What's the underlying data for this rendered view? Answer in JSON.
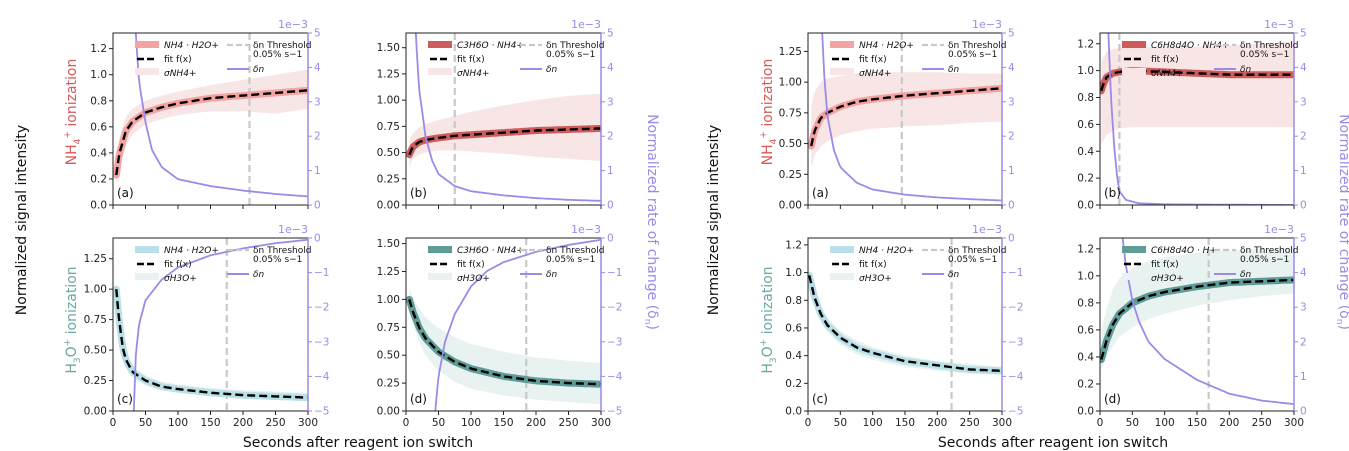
{
  "colors": {
    "nh4_fill": "#f8e6e6",
    "nh4_band_a": "#f4a3a3",
    "nh4_band_b": "#cd5c5c",
    "h3o_fill": "#e8f2f1",
    "h3o_band_a": "#b8e0e6",
    "h3o_band_b": "#5f9c98",
    "fit": "#000000",
    "threshold": "#c8c8c8",
    "delta": "#9b8ae6",
    "row_nh4_label": "#d85a5a",
    "row_h3o_label": "#6aa8a2"
  },
  "labels": {
    "ylabel_left": "Normalized signal intensity",
    "ylabel_right": "Normalized rate of change (δ",
    "ylabel_right_sub": "n",
    "ylabel_right_close": ")",
    "xlabel": "Seconds after reagent ion switch",
    "row_top": "NH",
    "row_top_sub": "4",
    "row_top_sup": "+",
    "row_top_rest": " ionization",
    "row_bottom": "H",
    "row_bottom_sub": "3",
    "row_bottom_rest": "O",
    "row_bottom_sup": "+",
    "row_bottom_end": " ionization",
    "sci": "1e−3"
  },
  "legend": {
    "fit": "fit f(x)",
    "threshold_a": "δ",
    "threshold_a_sub": "n",
    "threshold_a_rest": " Threshold",
    "threshold_b": "0.05% s",
    "threshold_b_sup": "−1",
    "delta": "δ",
    "delta_sub": "n",
    "sigma": "σ",
    "sigma_nh4_sub": "NH",
    "sigma_nh4_sub2": "4",
    "sigma_nh4_sup": "+",
    "sigma_h3o_sub": "H",
    "sigma_h3o_sub2": "3",
    "sigma_h3o_sub3": "O",
    "sigma_h3o_sup": "+"
  },
  "chart_data": [
    {
      "panel": "(a)",
      "group": "left",
      "row": "NH4+",
      "type": "line",
      "compound": "NH4 · H2O+",
      "xlim": [
        0,
        300
      ],
      "ylim": [
        0,
        1.32
      ],
      "yticks": [
        0.0,
        0.2,
        0.4,
        0.6,
        0.8,
        1.0,
        1.2
      ],
      "y2lim": [
        0,
        5
      ],
      "y2ticks": [
        0,
        1,
        2,
        3,
        4,
        5
      ],
      "threshold_x": 210,
      "fit": {
        "x": [
          5,
          10,
          20,
          30,
          50,
          75,
          100,
          150,
          200,
          250,
          300
        ],
        "y": [
          0.23,
          0.4,
          0.57,
          0.64,
          0.71,
          0.75,
          0.78,
          0.82,
          0.84,
          0.86,
          0.88
        ]
      },
      "sigma_upper": [
        0.3,
        0.52,
        0.68,
        0.74,
        0.8,
        0.84,
        0.87,
        0.92,
        0.96,
        1.0,
        1.04
      ],
      "sigma_lower": [
        0.15,
        0.28,
        0.46,
        0.54,
        0.62,
        0.66,
        0.69,
        0.72,
        0.72,
        0.7,
        0.74
      ],
      "delta": {
        "x": [
          35,
          40,
          50,
          60,
          75,
          100,
          150,
          200,
          250,
          300
        ],
        "y": [
          5.0,
          3.6,
          2.4,
          1.6,
          1.1,
          0.75,
          0.55,
          0.42,
          0.32,
          0.25
        ]
      }
    },
    {
      "panel": "(b)",
      "group": "left",
      "row": "NH4+",
      "type": "line",
      "compound": "C3H6O · NH4+",
      "xlim": [
        0,
        300
      ],
      "ylim": [
        0,
        1.64
      ],
      "yticks": [
        0.0,
        0.25,
        0.5,
        0.75,
        1.0,
        1.25,
        1.5
      ],
      "y2lim": [
        0,
        5
      ],
      "y2ticks": [
        0,
        1,
        2,
        3,
        4,
        5
      ],
      "threshold_x": 75,
      "fit": {
        "x": [
          5,
          10,
          20,
          30,
          50,
          75,
          100,
          150,
          200,
          250,
          300
        ],
        "y": [
          0.48,
          0.55,
          0.6,
          0.62,
          0.64,
          0.66,
          0.67,
          0.69,
          0.71,
          0.72,
          0.73
        ]
      },
      "sigma_upper": [
        0.62,
        0.68,
        0.74,
        0.77,
        0.81,
        0.85,
        0.89,
        0.95,
        1.0,
        1.04,
        1.06
      ],
      "sigma_lower": [
        0.36,
        0.44,
        0.48,
        0.5,
        0.52,
        0.52,
        0.51,
        0.49,
        0.46,
        0.44,
        0.42
      ],
      "delta": {
        "x": [
          15,
          20,
          30,
          40,
          50,
          75,
          100,
          150,
          200,
          250,
          300
        ],
        "y": [
          5.0,
          3.4,
          2.0,
          1.3,
          0.9,
          0.55,
          0.4,
          0.28,
          0.2,
          0.15,
          0.12
        ]
      }
    },
    {
      "panel": "(c)",
      "group": "left",
      "row": "H3O+",
      "type": "line",
      "compound": "NH4 · H2O+",
      "xlim": [
        0,
        300
      ],
      "ylim": [
        0,
        1.42
      ],
      "yticks": [
        0.0,
        0.25,
        0.5,
        0.75,
        1.0,
        1.25
      ],
      "y2lim": [
        -5,
        0
      ],
      "y2ticks": [
        -5,
        -4,
        -3,
        -2,
        -1,
        0
      ],
      "threshold_x": 175,
      "fit": {
        "x": [
          5,
          10,
          15,
          20,
          30,
          50,
          75,
          100,
          150,
          200,
          250,
          300
        ],
        "y": [
          1.0,
          0.72,
          0.52,
          0.42,
          0.32,
          0.25,
          0.2,
          0.18,
          0.15,
          0.13,
          0.12,
          0.11
        ]
      },
      "sigma_upper": [
        1.05,
        0.78,
        0.58,
        0.48,
        0.37,
        0.29,
        0.24,
        0.22,
        0.19,
        0.17,
        0.16,
        0.15
      ],
      "sigma_lower": [
        0.95,
        0.66,
        0.46,
        0.37,
        0.28,
        0.21,
        0.17,
        0.15,
        0.12,
        0.1,
        0.09,
        0.08
      ],
      "delta": {
        "x": [
          32,
          35,
          40,
          50,
          75,
          100,
          150,
          200,
          250,
          300
        ],
        "y": [
          -5.0,
          -3.4,
          -2.5,
          -1.8,
          -1.2,
          -0.85,
          -0.5,
          -0.3,
          -0.15,
          -0.05
        ]
      }
    },
    {
      "panel": "(d)",
      "group": "left",
      "row": "H3O+",
      "type": "line",
      "compound": "C3H6O · NH4+",
      "xlim": [
        0,
        300
      ],
      "ylim": [
        0,
        1.55
      ],
      "yticks": [
        0.0,
        0.25,
        0.5,
        0.75,
        1.0,
        1.25,
        1.5
      ],
      "y2lim": [
        -5,
        0
      ],
      "y2ticks": [
        -5,
        -4,
        -3,
        -2,
        -1,
        0
      ],
      "threshold_x": 185,
      "fit": {
        "x": [
          5,
          10,
          20,
          30,
          50,
          75,
          100,
          150,
          200,
          250,
          300
        ],
        "y": [
          1.0,
          0.9,
          0.75,
          0.65,
          0.53,
          0.44,
          0.38,
          0.31,
          0.27,
          0.25,
          0.24
        ]
      },
      "sigma_upper": [
        1.1,
        1.02,
        0.92,
        0.84,
        0.74,
        0.66,
        0.6,
        0.53,
        0.48,
        0.45,
        0.43
      ],
      "sigma_lower": [
        0.9,
        0.8,
        0.62,
        0.5,
        0.36,
        0.26,
        0.2,
        0.14,
        0.1,
        0.08,
        0.06
      ],
      "delta": {
        "x": [
          45,
          50,
          60,
          75,
          100,
          125,
          150,
          200,
          250,
          300
        ],
        "y": [
          -5.0,
          -4.0,
          -3.0,
          -2.2,
          -1.4,
          -0.95,
          -0.7,
          -0.4,
          -0.2,
          -0.05
        ]
      }
    },
    {
      "panel": "(a)",
      "group": "right",
      "row": "NH4+",
      "type": "line",
      "compound": "NH4 · H2O+",
      "xlim": [
        0,
        300
      ],
      "ylim": [
        0,
        1.4
      ],
      "yticks": [
        0.0,
        0.25,
        0.5,
        0.75,
        1.0,
        1.25
      ],
      "y2lim": [
        0,
        5
      ],
      "y2ticks": [
        0,
        1,
        2,
        3,
        4,
        5
      ],
      "threshold_x": 145,
      "fit": {
        "x": [
          5,
          10,
          20,
          30,
          50,
          75,
          100,
          150,
          200,
          250,
          300
        ],
        "y": [
          0.48,
          0.6,
          0.71,
          0.75,
          0.8,
          0.84,
          0.86,
          0.89,
          0.91,
          0.93,
          0.95
        ]
      },
      "sigma_upper": [
        0.8,
        0.92,
        1.0,
        1.03,
        1.05,
        1.07,
        1.08,
        1.08,
        1.08,
        1.07,
        1.07
      ],
      "sigma_lower": [
        0.3,
        0.4,
        0.48,
        0.52,
        0.57,
        0.6,
        0.62,
        0.64,
        0.65,
        0.67,
        0.68
      ],
      "delta": {
        "x": [
          22,
          25,
          30,
          40,
          50,
          75,
          100,
          150,
          200,
          250,
          300
        ],
        "y": [
          5.0,
          3.8,
          2.6,
          1.6,
          1.1,
          0.65,
          0.45,
          0.3,
          0.22,
          0.17,
          0.13
        ]
      }
    },
    {
      "panel": "(b)",
      "group": "right",
      "row": "NH4+",
      "type": "line",
      "compound": "C6H8d4O · NH4+",
      "xlim": [
        0,
        300
      ],
      "ylim": [
        0,
        1.28
      ],
      "yticks": [
        0.0,
        0.2,
        0.4,
        0.6,
        0.8,
        1.0,
        1.2
      ],
      "y2lim": [
        0,
        5
      ],
      "y2ticks": [
        0,
        1,
        2,
        3,
        4,
        5
      ],
      "threshold_x": 30,
      "fit": {
        "x": [
          2,
          5,
          10,
          20,
          30,
          50,
          100,
          150,
          200,
          250,
          300
        ],
        "y": [
          0.85,
          0.9,
          0.95,
          0.98,
          0.99,
          1.0,
          0.99,
          0.98,
          0.97,
          0.97,
          0.97
        ]
      },
      "sigma_upper": [
        1.05,
        1.1,
        1.14,
        1.16,
        1.17,
        1.17,
        1.18,
        1.18,
        1.19,
        1.2,
        1.22
      ],
      "sigma_lower": [
        0.45,
        0.48,
        0.52,
        0.55,
        0.57,
        0.58,
        0.58,
        0.58,
        0.58,
        0.58,
        0.58
      ],
      "delta": {
        "x": [
          13,
          15,
          18,
          22,
          26,
          30,
          40,
          60,
          100,
          200,
          300
        ],
        "y": [
          5.0,
          4.0,
          2.8,
          1.7,
          0.9,
          0.4,
          0.15,
          0.05,
          0.02,
          0.01,
          0.0
        ]
      }
    },
    {
      "panel": "(c)",
      "group": "right",
      "row": "H3O+",
      "type": "line",
      "compound": "NH4 · H2O+",
      "xlim": [
        0,
        300
      ],
      "ylim": [
        0,
        1.25
      ],
      "yticks": [
        0.0,
        0.2,
        0.4,
        0.6,
        0.8,
        1.0,
        1.2
      ],
      "y2lim": [
        -5,
        0
      ],
      "y2ticks": [
        -5,
        -4,
        -3,
        -2,
        -1,
        0
      ],
      "threshold_x": 222,
      "fit": {
        "x": [
          2,
          10,
          20,
          30,
          50,
          75,
          100,
          150,
          200,
          250,
          300
        ],
        "y": [
          0.98,
          0.82,
          0.7,
          0.62,
          0.53,
          0.46,
          0.42,
          0.36,
          0.33,
          0.3,
          0.29
        ]
      },
      "sigma_upper": [
        1.03,
        0.87,
        0.75,
        0.67,
        0.58,
        0.51,
        0.46,
        0.4,
        0.36,
        0.34,
        0.32
      ],
      "sigma_lower": [
        0.93,
        0.77,
        0.65,
        0.57,
        0.48,
        0.41,
        0.37,
        0.32,
        0.29,
        0.27,
        0.26
      ]
    },
    {
      "panel": "(d)",
      "group": "right",
      "row": "H3O+",
      "type": "line",
      "compound": "C6H8d4O · H+",
      "xlim": [
        0,
        300
      ],
      "ylim": [
        0,
        1.28
      ],
      "yticks": [
        0.0,
        0.2,
        0.4,
        0.6,
        0.8,
        1.0,
        1.2
      ],
      "y2lim": [
        0,
        5
      ],
      "y2ticks": [
        0,
        1,
        2,
        3,
        4,
        5
      ],
      "threshold_x": 168,
      "fit": {
        "x": [
          2,
          10,
          20,
          30,
          50,
          75,
          100,
          150,
          200,
          250,
          300
        ],
        "y": [
          0.38,
          0.52,
          0.64,
          0.72,
          0.8,
          0.85,
          0.88,
          0.92,
          0.95,
          0.96,
          0.97
        ]
      },
      "sigma_upper": [
        0.6,
        0.75,
        0.9,
        0.98,
        1.06,
        1.11,
        1.14,
        1.17,
        1.19,
        1.2,
        1.21
      ],
      "sigma_lower": [
        0.3,
        0.4,
        0.48,
        0.55,
        0.62,
        0.68,
        0.72,
        0.78,
        0.82,
        0.85,
        0.87
      ],
      "delta": {
        "x": [
          35,
          40,
          50,
          60,
          75,
          100,
          150,
          200,
          250,
          300
        ],
        "y": [
          5.0,
          4.2,
          3.2,
          2.6,
          2.0,
          1.5,
          0.9,
          0.5,
          0.3,
          0.2
        ]
      }
    }
  ]
}
